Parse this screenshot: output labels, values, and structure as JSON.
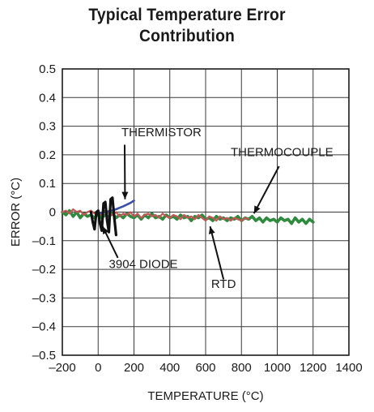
{
  "chart_data": {
    "type": "line",
    "title_lines": [
      "Typical Temperature Error",
      "Contribution"
    ],
    "xlabel": "TEMPERATURE (°C)",
    "ylabel": "ERROR (°C)",
    "xlim": [
      -200,
      1400
    ],
    "ylim": [
      -0.5,
      0.5
    ],
    "xticks": [
      -200,
      0,
      200,
      400,
      600,
      800,
      1000,
      1200,
      1400
    ],
    "xtick_labels": [
      "–200",
      "0",
      "200",
      "400",
      "600",
      "800",
      "1000",
      "1200",
      "1400"
    ],
    "yticks": [
      0.5,
      0.4,
      0.3,
      0.2,
      0.1,
      0,
      -0.1,
      -0.2,
      -0.3,
      -0.4,
      -0.5
    ],
    "ytick_labels": [
      "0.5",
      "0.4",
      "0.3",
      "0.2",
      "0.1",
      "0",
      "–0.1",
      "–0.2",
      "–0.3",
      "–0.4",
      "–0.5"
    ],
    "grid": true,
    "series": [
      {
        "name": "THERMOCOUPLE",
        "color": "#2e8b3e",
        "x": [
          -200,
          -180,
          -160,
          -140,
          -120,
          -100,
          -80,
          -60,
          -40,
          -20,
          0,
          20,
          40,
          60,
          80,
          100,
          120,
          140,
          160,
          180,
          200,
          220,
          240,
          260,
          280,
          300,
          320,
          340,
          360,
          380,
          400,
          420,
          440,
          460,
          480,
          500,
          520,
          540,
          560,
          580,
          600,
          620,
          640,
          660,
          680,
          700,
          720,
          740,
          760,
          780,
          800,
          820,
          840,
          860,
          880,
          900,
          920,
          940,
          960,
          980,
          1000,
          1020,
          1040,
          1060,
          1080,
          1100,
          1120,
          1140,
          1160,
          1180,
          1200
        ],
        "y": [
          0.0,
          -0.01,
          0.005,
          -0.015,
          0.0,
          -0.02,
          -0.005,
          -0.015,
          -0.01,
          -0.02,
          -0.005,
          -0.02,
          -0.01,
          -0.015,
          -0.005,
          -0.02,
          -0.01,
          -0.02,
          -0.005,
          -0.015,
          -0.02,
          -0.01,
          -0.025,
          -0.01,
          -0.02,
          -0.005,
          -0.02,
          -0.015,
          -0.025,
          -0.01,
          -0.02,
          -0.015,
          -0.025,
          -0.01,
          -0.02,
          -0.015,
          -0.03,
          -0.015,
          -0.02,
          -0.01,
          -0.025,
          -0.02,
          -0.03,
          -0.015,
          -0.025,
          -0.02,
          -0.03,
          -0.02,
          -0.025,
          -0.015,
          -0.03,
          -0.02,
          -0.025,
          -0.015,
          -0.03,
          -0.02,
          -0.035,
          -0.02,
          -0.03,
          -0.025,
          -0.035,
          -0.02,
          -0.03,
          -0.025,
          -0.04,
          -0.02,
          -0.035,
          -0.025,
          -0.04,
          -0.025,
          -0.035
        ]
      },
      {
        "name": "RTD",
        "color": "#c25757",
        "x": [
          -200,
          -180,
          -160,
          -140,
          -120,
          -100,
          -80,
          -60,
          -40,
          -20,
          0,
          20,
          40,
          60,
          80,
          100,
          120,
          140,
          160,
          180,
          200,
          220,
          240,
          260,
          280,
          300,
          320,
          340,
          360,
          380,
          400,
          420,
          440,
          460,
          480,
          500,
          520,
          540,
          560,
          580,
          600,
          620,
          640,
          660,
          680,
          700,
          720,
          740,
          760,
          780,
          800,
          820,
          840
        ],
        "y": [
          0.0,
          0.005,
          -0.005,
          0.01,
          0.0,
          0.005,
          -0.01,
          0.0,
          0.005,
          -0.005,
          0.0,
          -0.01,
          0.005,
          -0.005,
          -0.01,
          0.0,
          -0.015,
          -0.005,
          -0.01,
          0.0,
          -0.015,
          -0.005,
          -0.02,
          -0.01,
          -0.005,
          -0.015,
          -0.01,
          -0.02,
          -0.005,
          -0.015,
          -0.02,
          -0.01,
          -0.015,
          -0.025,
          -0.01,
          -0.02,
          -0.015,
          -0.025,
          -0.01,
          -0.02,
          -0.03,
          -0.015,
          -0.02,
          -0.03,
          -0.015,
          -0.025,
          -0.02,
          -0.03,
          -0.02,
          -0.025,
          -0.03,
          -0.02,
          -0.025
        ]
      },
      {
        "name": "THERMISTOR",
        "color": "#3a4fa8",
        "x": [
          0,
          20,
          40,
          60,
          80,
          100,
          120,
          140,
          160,
          180,
          200
        ],
        "y": [
          -0.005,
          -0.002,
          0.0,
          0.003,
          0.006,
          0.01,
          0.015,
          0.02,
          0.026,
          0.032,
          0.04
        ]
      },
      {
        "name": "3904 DIODE",
        "color": "#111111",
        "x": [
          -40,
          -30,
          -20,
          -10,
          0,
          10,
          20,
          30,
          40,
          50,
          60,
          70,
          80,
          90,
          100
        ],
        "y": [
          0.0,
          -0.035,
          -0.06,
          0.0,
          0.005,
          -0.04,
          -0.065,
          0.03,
          0.035,
          -0.03,
          -0.07,
          0.045,
          0.05,
          -0.02,
          -0.08
        ]
      }
    ],
    "annotations": [
      {
        "text": "THERMISTOR",
        "series": "THERMISTOR"
      },
      {
        "text": "THERMOCOUPLE",
        "series": "THERMOCOUPLE"
      },
      {
        "text": "3904 DIODE",
        "series": "3904 DIODE"
      },
      {
        "text": "RTD",
        "series": "RTD"
      }
    ]
  }
}
